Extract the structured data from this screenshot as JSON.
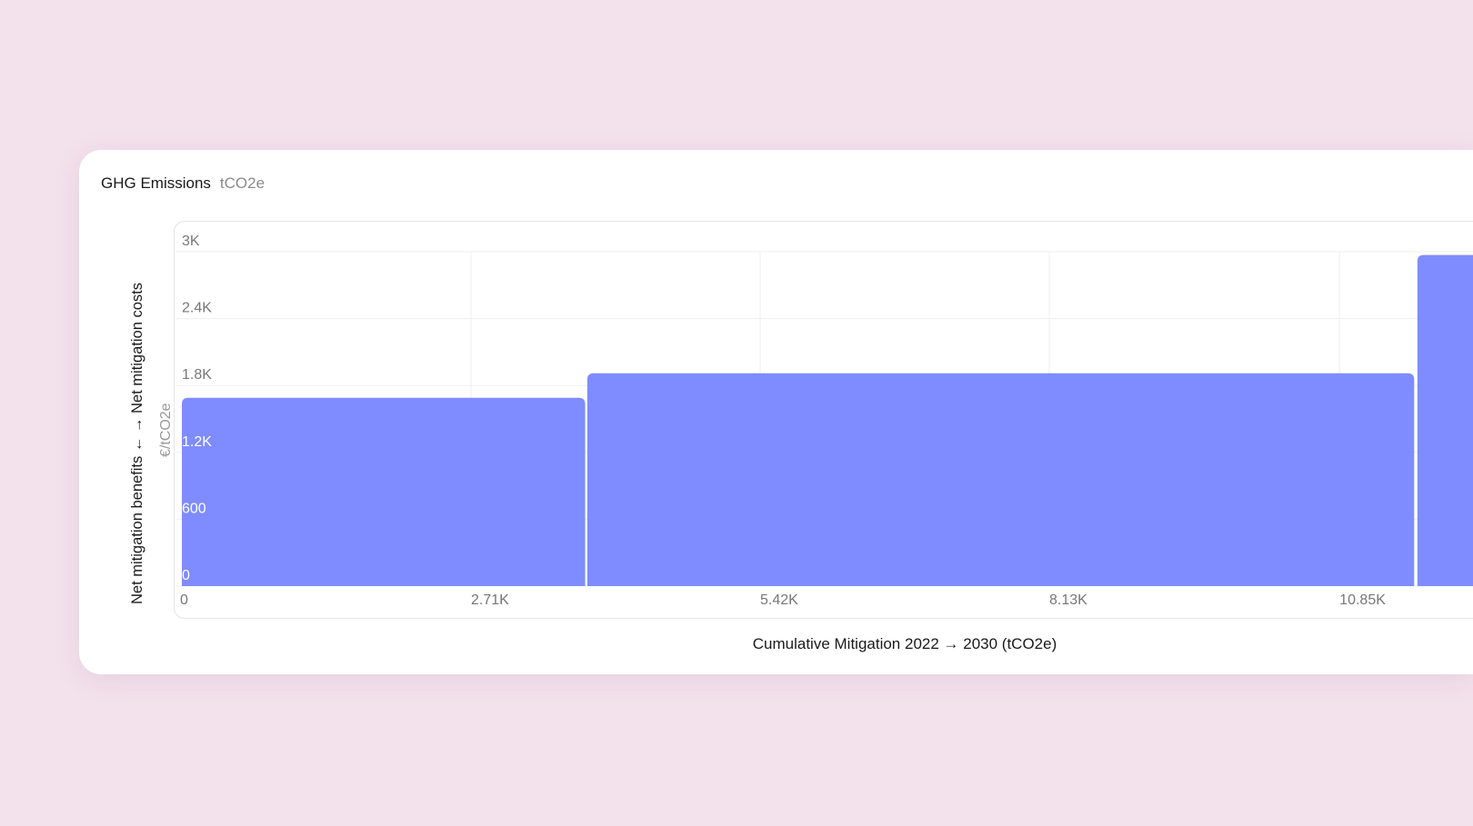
{
  "header": {
    "title": "GHG Emissions",
    "unit": "tCO2e"
  },
  "chart_data": {
    "type": "bar",
    "subtype": "variable-width (marginal abatement cost curve)",
    "xlabel": "Cumulative Mitigation 2022 → 2030 (tCO2e)",
    "ylabel": "Net mitigation benefits ← → Net mitigation costs",
    "yunit": "€/tCO2e",
    "x_ticks": [
      "0",
      "2.71K",
      "5.42K",
      "8.13K",
      "10.85K"
    ],
    "x_tick_values": [
      0,
      2710,
      5420,
      8130,
      10850
    ],
    "y_ticks": [
      "0",
      "600",
      "1.2K",
      "1.8K",
      "2.4K",
      "3K"
    ],
    "y_tick_values": [
      0,
      600,
      1200,
      1800,
      2400,
      3000
    ],
    "ylim": [
      0,
      3000
    ],
    "grid": true,
    "bar_color": "#7f8cff",
    "bars": [
      {
        "x_start": 0,
        "x_end": 3780,
        "value": 1690
      },
      {
        "x_start": 3800,
        "x_end": 11550,
        "value": 1910
      },
      {
        "x_start": 11580,
        "x_end": null,
        "value": 2970
      }
    ]
  }
}
